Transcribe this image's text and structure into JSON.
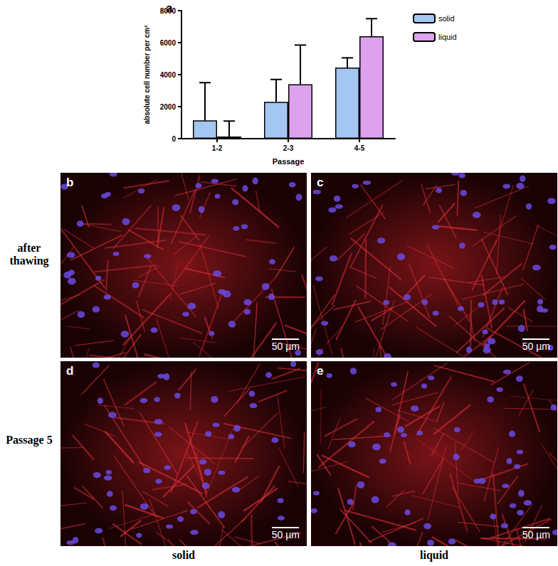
{
  "chart_data": {
    "type": "bar",
    "panel_label": "a",
    "x_label": "Passage",
    "y_label": "absolute cell number per cm²",
    "categories": [
      "1-2",
      "2-3",
      "4-5"
    ],
    "series": [
      {
        "name": "solid",
        "color": "#a3c7f0",
        "values": [
          1150,
          2300,
          4450
        ],
        "errors": [
          2350,
          1400,
          600
        ]
      },
      {
        "name": "liquid",
        "color": "#dda2ee",
        "values": [
          130,
          3400,
          6400
        ],
        "errors": [
          970,
          2450,
          1100
        ]
      }
    ],
    "ylim": [
      0,
      8000
    ],
    "yticks": [
      0,
      2000,
      4000,
      6000,
      8000
    ],
    "grid": false,
    "legend": "upper right"
  },
  "panels": [
    {
      "label": "b",
      "scale_bar": "50 µm"
    },
    {
      "label": "c",
      "scale_bar": "50 µm"
    },
    {
      "label": "d",
      "scale_bar": "50 µm"
    },
    {
      "label": "e",
      "scale_bar": "50 µm"
    }
  ],
  "row_labels": [
    "after thawing",
    "Passage 5"
  ],
  "column_labels": [
    "solid",
    "liquid"
  ]
}
